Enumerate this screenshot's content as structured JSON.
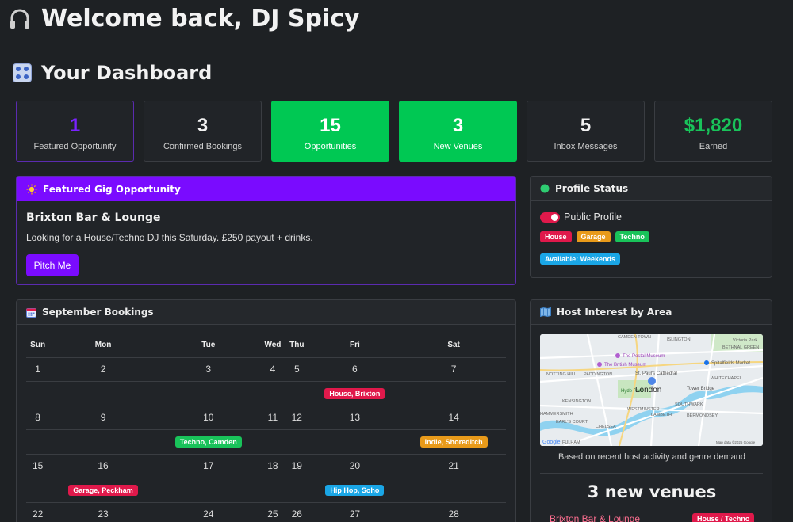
{
  "header": {
    "welcome": "Welcome back, DJ Spicy",
    "dashboard_title": "Your Dashboard"
  },
  "stats": [
    {
      "value": "1",
      "label": "Featured Opportunity"
    },
    {
      "value": "3",
      "label": "Confirmed Bookings"
    },
    {
      "value": "15",
      "label": "Opportunities"
    },
    {
      "value": "3",
      "label": "New Venues"
    },
    {
      "value": "5",
      "label": "Inbox Messages"
    },
    {
      "value": "$1,820",
      "label": "Earned"
    }
  ],
  "featured": {
    "heading": "Featured Gig Opportunity",
    "venue": "Brixton Bar & Lounge",
    "description": "Looking for a House/Techno DJ this Saturday. £250 payout + drinks.",
    "button": "Pitch Me"
  },
  "profile": {
    "heading": "Profile Status",
    "toggle_label": "Public Profile",
    "toggle_on": true,
    "genres": [
      "House",
      "Garage",
      "Techno"
    ],
    "availability": "Available: Weekends"
  },
  "calendar": {
    "heading": "September Bookings",
    "weekdays": [
      "Sun",
      "Mon",
      "Tue",
      "Wed",
      "Thu",
      "Fri",
      "Sat"
    ],
    "weeks": [
      {
        "days": [
          "1",
          "2",
          "3",
          "4",
          "5",
          "6",
          "7"
        ],
        "events": [
          "",
          "",
          "",
          "",
          "",
          "House, Brixton",
          ""
        ]
      },
      {
        "days": [
          "8",
          "9",
          "10",
          "11",
          "12",
          "13",
          "14"
        ],
        "events": [
          "",
          "",
          "Techno, Camden",
          "",
          "",
          "",
          "Indie, Shoreditch"
        ]
      },
      {
        "days": [
          "15",
          "16",
          "17",
          "18",
          "19",
          "20",
          "21"
        ],
        "events": [
          "",
          "Garage, Peckham",
          "",
          "",
          "",
          "Hip Hop, Soho",
          ""
        ]
      },
      {
        "days": [
          "22",
          "23",
          "24",
          "25",
          "26",
          "27",
          "28"
        ],
        "events": [
          "",
          "",
          "",
          "",
          "",
          "",
          ""
        ]
      }
    ]
  },
  "area": {
    "heading": "Host Interest by Area",
    "map_labels": [
      "CAMDEN TOWN",
      "ISLINGTON",
      "Victoria Park",
      "BETHNAL GREEN",
      "The Postal Museum",
      "The British Museum",
      "Spitalfields Market",
      "NOTTING HILL",
      "PADDINGTON",
      "St. Paul's Cathedral",
      "WHITECHAPEL",
      "Hyde Park",
      "London",
      "Tower Bridge",
      "KENSINGTON",
      "WESTMINSTER",
      "LAMBETH",
      "SOUTHWARK",
      "HAMMERSMITH",
      "EARL'S COURT",
      "CHELSEA",
      "BERMONDSEY",
      "FULHAM",
      "Google",
      "Map data ©2025 Google"
    ],
    "caption": "Based on recent host activity and genre demand",
    "new_venues": "3 new venues",
    "venue_name": "Brixton Bar & Lounge",
    "venue_tag": "House / Techno"
  }
}
